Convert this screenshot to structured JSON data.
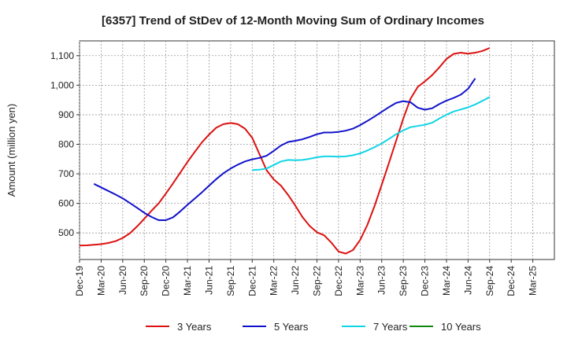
{
  "chart_data": {
    "type": "line",
    "title": "[6357]  Trend of StDev of 12-Month Moving Sum of Ordinary Incomes",
    "xlabel": "",
    "ylabel": "Amount (million yen)",
    "ylim": [
      410,
      1150
    ],
    "yticks": [
      500,
      600,
      700,
      800,
      900,
      1000,
      1100
    ],
    "ytick_labels": [
      "500",
      "600",
      "700",
      "800",
      "900",
      "1,000",
      "1,100"
    ],
    "x_index_range": [
      0,
      66
    ],
    "xtick_labels": [
      "Dec-19",
      "Mar-20",
      "Jun-20",
      "Sep-20",
      "Dec-20",
      "Mar-21",
      "Jun-21",
      "Sep-21",
      "Dec-21",
      "Mar-22",
      "Jun-22",
      "Sep-22",
      "Dec-22",
      "Mar-23",
      "Jun-23",
      "Sep-23",
      "Dec-23",
      "Mar-24",
      "Jun-24",
      "Sep-24",
      "Dec-24",
      "Mar-25"
    ],
    "legend_position": "bottom",
    "grid": true,
    "series": [
      {
        "name": "3 Years",
        "color": "#dd1111",
        "start_index": 0,
        "values": [
          457,
          458,
          460,
          462,
          466,
          472,
          483,
          499,
          522,
          548,
          575,
          600,
          633,
          668,
          704,
          740,
          774,
          806,
          833,
          856,
          868,
          872,
          868,
          853,
          822,
          767,
          712,
          681,
          660,
          628,
          592,
          553,
          523,
          502,
          492,
          467,
          437,
          430,
          442,
          476,
          527,
          591,
          663,
          737,
          812,
          887,
          954,
          994,
          1013,
          1034,
          1060,
          1089,
          1106,
          1110,
          1107,
          1110,
          1116,
          1126
        ]
      },
      {
        "name": "5 Years",
        "color": "#1111cc",
        "start_index": 2,
        "values": [
          666,
          654,
          642,
          630,
          617,
          601,
          585,
          568,
          554,
          543,
          543,
          553,
          573,
          595,
          616,
          637,
          660,
          682,
          702,
          718,
          731,
          742,
          749,
          754,
          761,
          778,
          796,
          808,
          812,
          817,
          825,
          834,
          840,
          840,
          842,
          846,
          853,
          865,
          879,
          894,
          910,
          926,
          940,
          946,
          942,
          924,
          917,
          922,
          936,
          948,
          957,
          968,
          988,
          1023
        ]
      },
      {
        "name": "7 Years",
        "color": "#11d4e6",
        "start_index": 24,
        "values": [
          713,
          714,
          718,
          730,
          742,
          747,
          746,
          747,
          751,
          756,
          759,
          759,
          758,
          759,
          763,
          769,
          779,
          790,
          803,
          818,
          834,
          847,
          858,
          862,
          866,
          873,
          887,
          900,
          911,
          918,
          925,
          935,
          947,
          960
        ]
      },
      {
        "name": "10 Years",
        "color": "#118811",
        "start_index": 0,
        "values": []
      }
    ]
  }
}
